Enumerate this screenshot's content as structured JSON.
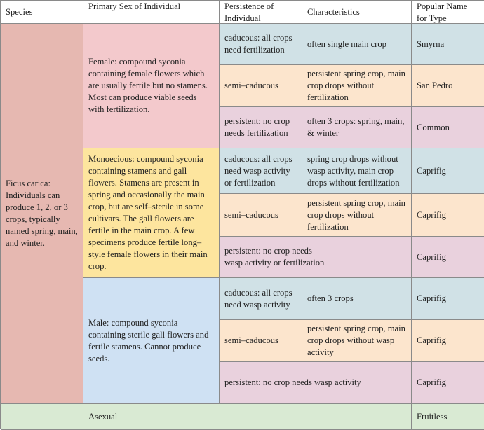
{
  "headers": [
    "Species",
    "Primary Sex of Individual",
    "Persistence of Individual",
    "Characteristics",
    "Popular Name for Type"
  ],
  "species": "Ficus carica: Individuals can produce 1, 2, or 3 crops, typically named spring, main, and winter.",
  "female": {
    "sex": "Female: compound syconia containing female flowers which are usually fertile but no stamens. Most can produce viable seeds with fertilization.",
    "rows": [
      {
        "persistence": "caducous: all crops need fertilization",
        "characteristics": "often single main crop",
        "name": "Smyrna"
      },
      {
        "persistence": "semi–caducous",
        "characteristics": "persistent spring crop, main crop drops without fertilization",
        "name": "San Pedro"
      },
      {
        "persistence": "persistent: no crop needs fertilization",
        "characteristics": "often 3 crops: spring, main, & winter",
        "name": "Common"
      }
    ]
  },
  "monoecious": {
    "sex": "Monoecious: compound syconia containing stamens and gall flowers. Stamens are present in spring and occasionally the main crop, but are self–sterile in some cultivars. The gall flowers are fertile in the main crop. A few specimens produce fertile long–style female flowers in their main crop.",
    "rows": [
      {
        "persistence": "caducous: all crops need wasp activity or fertilization",
        "characteristics": "spring crop drops without wasp activity, main crop drops without fertilization",
        "name": "Caprifig"
      },
      {
        "persistence": "semi–caducous",
        "characteristics": "persistent spring crop, main crop drops without fertilization",
        "name": "Caprifig"
      },
      {
        "persistence": "persistent: no crop needs wasp activity or fertilization",
        "name": "Caprifig"
      }
    ]
  },
  "male": {
    "sex": "Male: compound syconia containing sterile gall flowers and fertile stamens. Cannot produce seeds.",
    "rows": [
      {
        "persistence": "caducous: all crops need wasp activity",
        "characteristics": "often 3 crops",
        "name": "Caprifig"
      },
      {
        "persistence": "semi–caducous",
        "characteristics": "persistent spring crop, main crop drops without wasp activity",
        "name": "Caprifig"
      },
      {
        "persistence": "persistent: no crop needs wasp activity",
        "name": "Caprifig"
      }
    ]
  },
  "asexual": {
    "sex": "Asexual",
    "name": "Fruitless"
  }
}
